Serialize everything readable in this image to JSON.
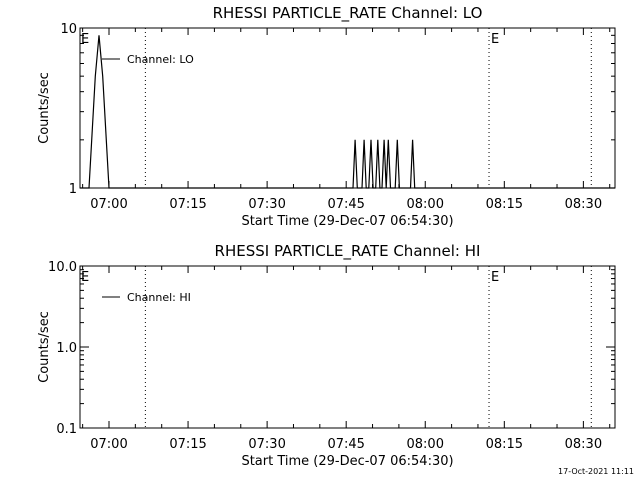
{
  "footer_timestamp": "17-Oct-2021 11:11",
  "colors": {
    "background": "#ffffff",
    "foreground": "#000000"
  },
  "chart_data": [
    {
      "type": "line",
      "title": "RHESSI PARTICLE_RATE Channel: LO",
      "xlabel": "Start Time (29-Dec-07 06:54:30)",
      "ylabel": "Counts/sec",
      "x_unit": "minutes after 29-Dec-07 06:54:30",
      "xlim": [
        0,
        101.5
      ],
      "ylim": [
        1,
        10
      ],
      "yscale": "log",
      "x_ticks": [
        {
          "label": "07:00",
          "value": 5.5
        },
        {
          "label": "07:15",
          "value": 20.5
        },
        {
          "label": "07:30",
          "value": 35.5
        },
        {
          "label": "07:45",
          "value": 50.5
        },
        {
          "label": "08:00",
          "value": 65.5
        },
        {
          "label": "08:15",
          "value": 80.5
        },
        {
          "label": "08:30",
          "value": 95.5
        }
      ],
      "y_ticks": [
        {
          "label": "10",
          "value": 10
        },
        {
          "label": "1",
          "value": 1
        }
      ],
      "legend": {
        "label": "Channel: LO",
        "position": "top-left"
      },
      "event_lines": [
        {
          "x": 12.4,
          "marker": ""
        },
        {
          "x": 77.6,
          "marker": "E"
        },
        {
          "x": 97.0,
          "marker": ""
        }
      ],
      "edge_markers": [
        "E"
      ],
      "series": [
        {
          "values": [
            [
              0.0,
              1
            ],
            [
              1.7,
              1
            ],
            [
              2.9,
              5
            ],
            [
              3.6,
              9
            ],
            [
              4.3,
              5
            ],
            [
              5.5,
              1
            ],
            [
              5.9,
              1
            ],
            [
              51.8,
              1
            ],
            [
              52.2,
              2
            ],
            [
              52.6,
              1
            ],
            [
              53.5,
              1
            ],
            [
              53.9,
              2
            ],
            [
              54.3,
              1
            ],
            [
              54.8,
              1
            ],
            [
              55.2,
              2
            ],
            [
              55.6,
              1
            ],
            [
              56.1,
              1
            ],
            [
              56.5,
              2
            ],
            [
              56.9,
              1
            ],
            [
              57.3,
              1
            ],
            [
              57.7,
              2
            ],
            [
              58.1,
              1
            ],
            [
              58.5,
              2
            ],
            [
              58.9,
              1
            ],
            [
              59.8,
              1
            ],
            [
              60.2,
              2
            ],
            [
              60.6,
              1
            ],
            [
              62.7,
              1
            ],
            [
              63.1,
              2
            ],
            [
              63.5,
              1
            ],
            [
              101.5,
              1
            ]
          ]
        }
      ]
    },
    {
      "type": "line",
      "title": "RHESSI PARTICLE_RATE Channel: HI",
      "xlabel": "Start Time (29-Dec-07 06:54:30)",
      "ylabel": "Counts/sec",
      "x_unit": "minutes after 29-Dec-07 06:54:30",
      "xlim": [
        0,
        101.5
      ],
      "ylim": [
        0.1,
        10
      ],
      "yscale": "log",
      "x_ticks": [
        {
          "label": "07:00",
          "value": 5.5
        },
        {
          "label": "07:15",
          "value": 20.5
        },
        {
          "label": "07:30",
          "value": 35.5
        },
        {
          "label": "07:45",
          "value": 50.5
        },
        {
          "label": "08:00",
          "value": 65.5
        },
        {
          "label": "08:15",
          "value": 80.5
        },
        {
          "label": "08:30",
          "value": 95.5
        }
      ],
      "y_ticks": [
        {
          "label": "10.0",
          "value": 10
        },
        {
          "label": "1.0",
          "value": 1
        },
        {
          "label": "0.1",
          "value": 0.1
        }
      ],
      "legend": {
        "label": "Channel: HI",
        "position": "top-left"
      },
      "event_lines": [
        {
          "x": 12.4,
          "marker": ""
        },
        {
          "x": 77.6,
          "marker": "E"
        },
        {
          "x": 97.0,
          "marker": ""
        }
      ],
      "edge_markers": [
        "E"
      ],
      "series": [
        {
          "values": []
        }
      ]
    }
  ]
}
